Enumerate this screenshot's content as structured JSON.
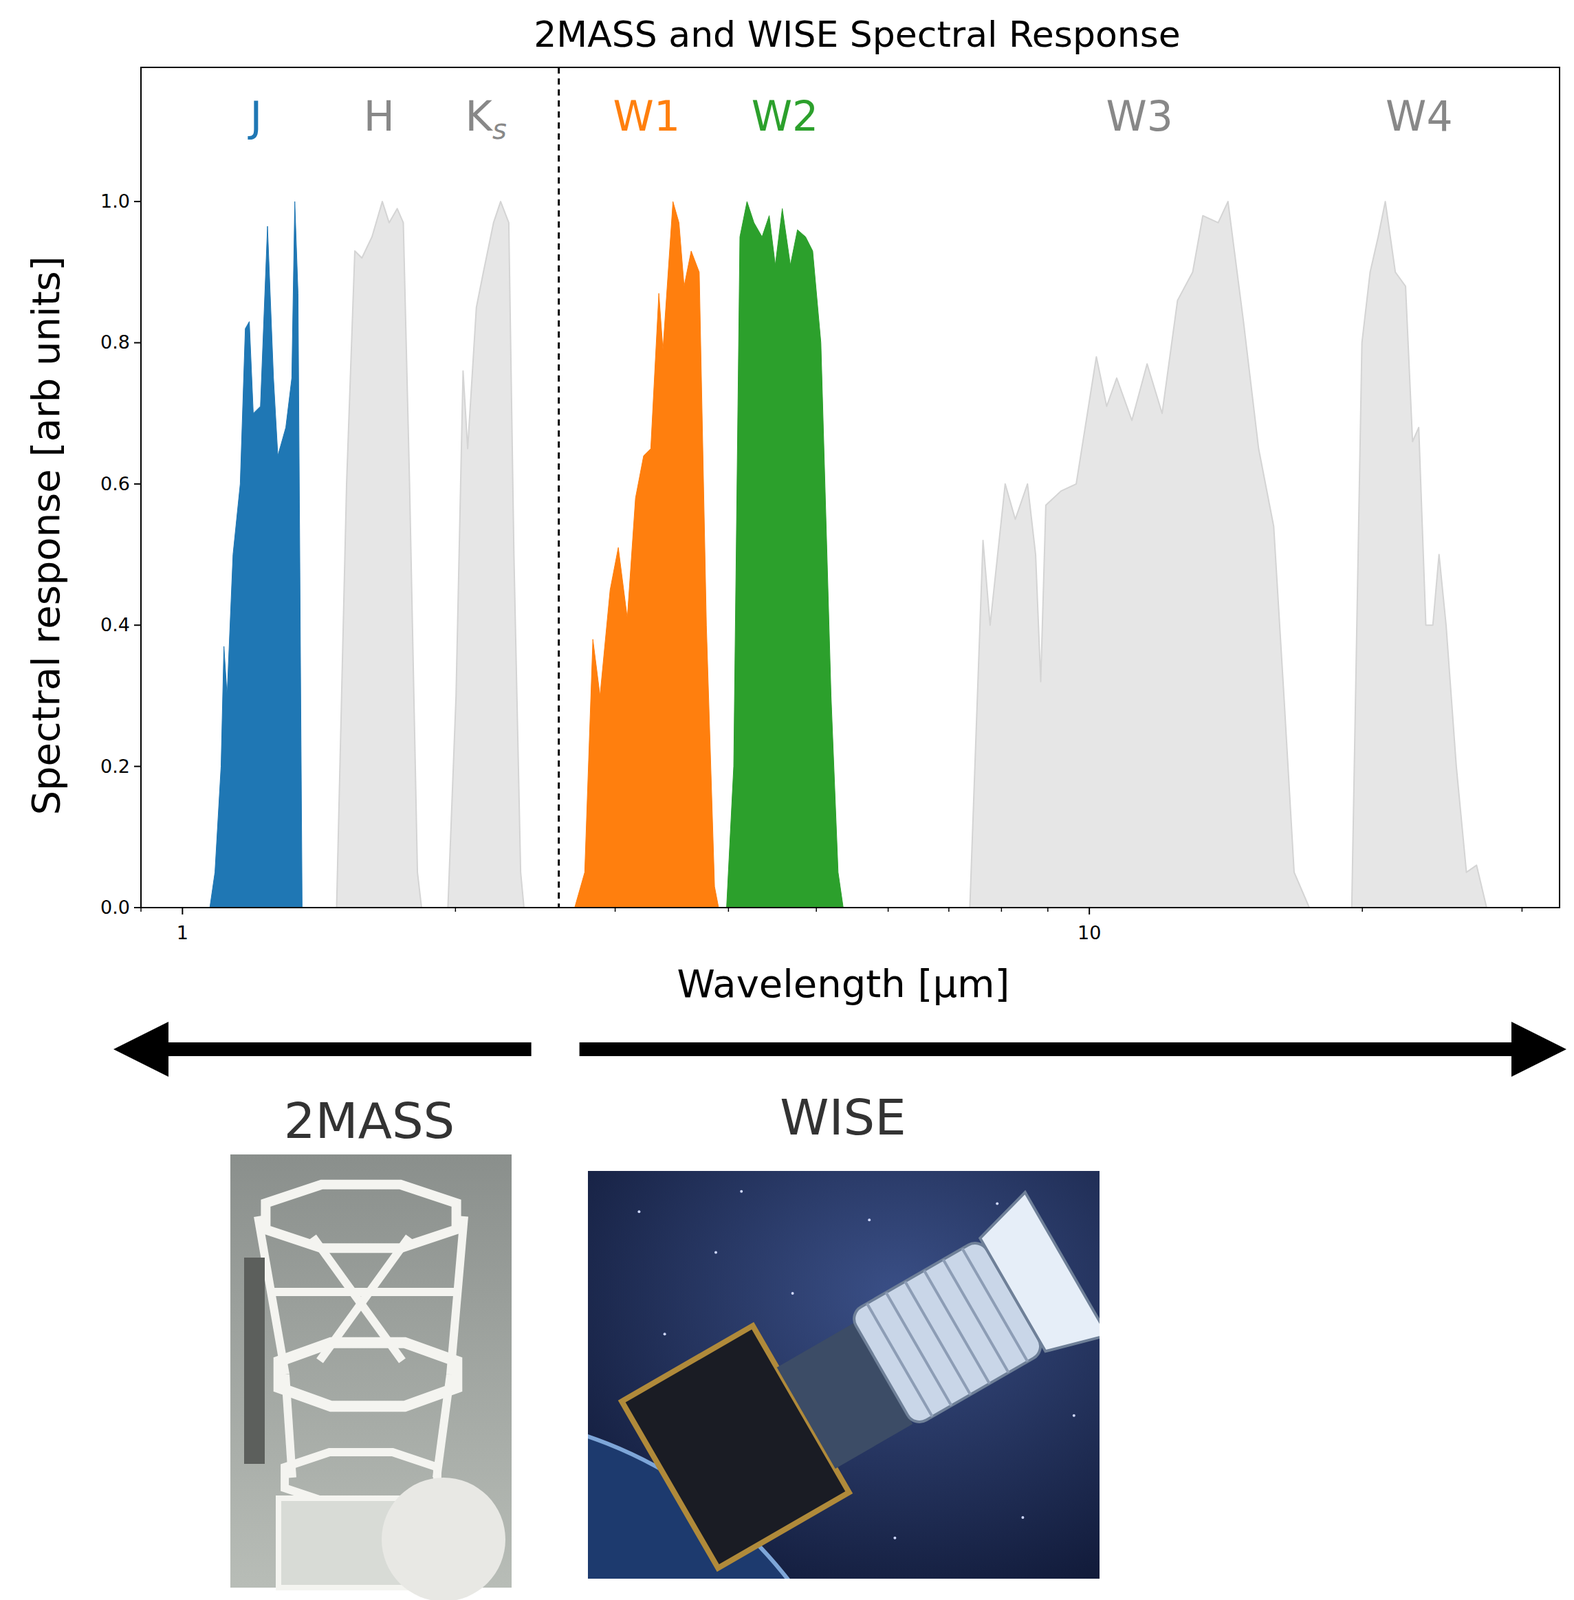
{
  "chart_data": {
    "type": "area",
    "title": "2MASS and WISE Spectral Response",
    "x_label": "Wavelength [μm]",
    "y_label": "Spectral response [arb units]",
    "log": "x",
    "grid": false,
    "xlim": [
      0.9,
      33
    ],
    "ylim": [
      0,
      1.19
    ],
    "xticks": [
      1,
      10
    ],
    "yticks": [
      {
        "value": 0,
        "label": "0.0"
      },
      {
        "value": 0.2,
        "label": "0.2"
      },
      {
        "value": 0.4,
        "label": "0.4"
      },
      {
        "value": 0.6,
        "label": "0.6"
      },
      {
        "value": 0.8,
        "label": "0.8"
      },
      {
        "value": 1,
        "label": "1.0"
      }
    ],
    "divider_x": 2.6,
    "instruments": [
      "2MASS",
      "WISE"
    ],
    "series": [
      {
        "name": "J",
        "color": "#1f77b4",
        "x": [
          1.072,
          1.086,
          1.103,
          1.111,
          1.12,
          1.137,
          1.158,
          1.173,
          1.185,
          1.197,
          1.219,
          1.241,
          1.26,
          1.274,
          1.3,
          1.32,
          1.33,
          1.341,
          1.355
        ],
        "values": [
          0,
          0.05,
          0.2,
          0.37,
          0.3,
          0.5,
          0.6,
          0.82,
          0.83,
          0.7,
          0.71,
          0.965,
          0.75,
          0.64,
          0.68,
          0.75,
          1.0,
          0.87,
          0
        ]
      },
      {
        "name": "H",
        "color": "#e6e6e6",
        "x": [
          1.479,
          1.517,
          1.549,
          1.577,
          1.618,
          1.661,
          1.69,
          1.725,
          1.752,
          1.78,
          1.816,
          1.835
        ],
        "values": [
          0,
          0.6,
          0.93,
          0.92,
          0.95,
          1.0,
          0.97,
          0.99,
          0.97,
          0.6,
          0.05,
          0
        ]
      },
      {
        "name": "Ks",
        "color": "#e6e6e6",
        "x": [
          1.962,
          2.003,
          2.039,
          2.063,
          2.109,
          2.147,
          2.203,
          2.243,
          2.29,
          2.32,
          2.36,
          2.38
        ],
        "values": [
          0,
          0.3,
          0.76,
          0.65,
          0.85,
          0.9,
          0.97,
          1.0,
          0.97,
          0.5,
          0.05,
          0
        ]
      },
      {
        "name": "W1",
        "color": "#ff7f0e",
        "x": [
          2.707,
          2.777,
          2.835,
          2.887,
          2.962,
          3.024,
          3.094,
          3.159,
          3.225,
          3.284,
          3.352,
          3.387,
          3.474,
          3.528,
          3.574,
          3.639,
          3.714,
          3.782,
          3.861,
          3.901
        ],
        "values": [
          0,
          0.05,
          0.38,
          0.3,
          0.45,
          0.51,
          0.41,
          0.58,
          0.64,
          0.65,
          0.87,
          0.79,
          1.0,
          0.97,
          0.88,
          0.93,
          0.9,
          0.4,
          0.03,
          0
        ]
      },
      {
        "name": "W2",
        "color": "#2ca02c",
        "x": [
          3.981,
          4.054,
          4.118,
          4.193,
          4.268,
          4.356,
          4.436,
          4.505,
          4.586,
          4.681,
          4.766,
          4.865,
          4.954,
          5.058,
          5.19,
          5.284,
          5.353
        ],
        "values": [
          0,
          0.2,
          0.95,
          1.0,
          0.97,
          0.95,
          0.98,
          0.91,
          0.99,
          0.91,
          0.96,
          0.95,
          0.93,
          0.8,
          0.3,
          0.05,
          0
        ]
      },
      {
        "name": "W3",
        "color": "#e6e6e6",
        "x": [
          7.383,
          7.634,
          7.773,
          8.076,
          8.286,
          8.547,
          8.725,
          8.839,
          8.954,
          9.306,
          9.672,
          10.18,
          10.45,
          10.72,
          11.14,
          11.58,
          12.03,
          12.51,
          13.0,
          13.34,
          13.87,
          14.22,
          14.79,
          15.37,
          15.97,
          16.39,
          16.82,
          17.48
        ],
        "values": [
          0,
          0.52,
          0.4,
          0.6,
          0.55,
          0.6,
          0.5,
          0.32,
          0.57,
          0.59,
          0.6,
          0.78,
          0.71,
          0.75,
          0.69,
          0.77,
          0.7,
          0.86,
          0.9,
          0.98,
          0.97,
          1.0,
          0.83,
          0.65,
          0.54,
          0.3,
          0.05,
          0
        ]
      },
      {
        "name": "W4",
        "color": "#e6e6e6",
        "x": [
          19.47,
          19.98,
          20.4,
          20.82,
          21.2,
          21.75,
          22.32,
          22.72,
          23.08,
          23.5,
          23.92,
          24.3,
          24.74,
          25.39,
          26.05,
          26.73,
          27.42
        ],
        "values": [
          0,
          0.8,
          0.9,
          0.95,
          1.0,
          0.9,
          0.88,
          0.66,
          0.68,
          0.4,
          0.4,
          0.5,
          0.4,
          0.2,
          0.05,
          0.06,
          0
        ]
      }
    ]
  }
}
